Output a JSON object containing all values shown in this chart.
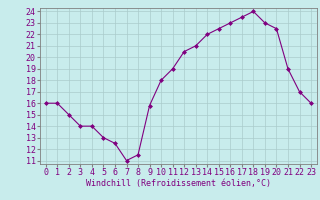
{
  "x": [
    0,
    1,
    2,
    3,
    4,
    5,
    6,
    7,
    8,
    9,
    10,
    11,
    12,
    13,
    14,
    15,
    16,
    17,
    18,
    19,
    20,
    21,
    22,
    23
  ],
  "y": [
    16,
    16,
    15,
    14,
    14,
    13,
    12.5,
    11,
    11.5,
    15.8,
    18,
    19,
    20.5,
    21,
    22,
    22.5,
    23,
    23.5,
    24,
    23,
    22.5,
    19,
    17,
    16
  ],
  "line_color": "#800080",
  "marker": "D",
  "marker_size": 2,
  "background_color": "#c8ecec",
  "grid_color": "#aacccc",
  "xlabel": "Windchill (Refroidissement éolien,°C)",
  "xlabel_color": "#800080",
  "xlabel_fontsize": 6.0,
  "tick_color": "#800080",
  "tick_fontsize": 6.0,
  "ylim": [
    11,
    24
  ],
  "xlim": [
    0,
    23
  ],
  "yticks": [
    11,
    12,
    13,
    14,
    15,
    16,
    17,
    18,
    19,
    20,
    21,
    22,
    23,
    24
  ],
  "xticks": [
    0,
    1,
    2,
    3,
    4,
    5,
    6,
    7,
    8,
    9,
    10,
    11,
    12,
    13,
    14,
    15,
    16,
    17,
    18,
    19,
    20,
    21,
    22,
    23
  ]
}
